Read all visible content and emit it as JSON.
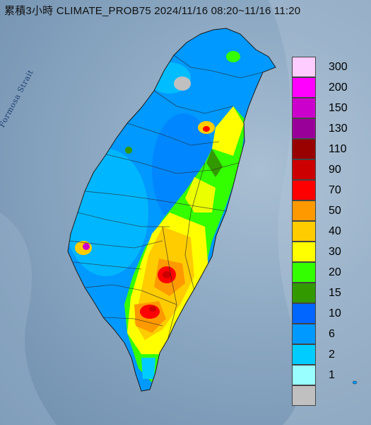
{
  "title": "累積3小時 CLIMATE_PROB75 2024/11/16 08:20~11/16 11:20",
  "water_label": "Formosa Strait",
  "legend": [
    {
      "label": "300",
      "color": "#ffccff"
    },
    {
      "label": "200",
      "color": "#ff00ff"
    },
    {
      "label": "150",
      "color": "#cc00cc"
    },
    {
      "label": "130",
      "color": "#990099"
    },
    {
      "label": "110",
      "color": "#990000"
    },
    {
      "label": "90",
      "color": "#cc0000"
    },
    {
      "label": "70",
      "color": "#ff0000"
    },
    {
      "label": "50",
      "color": "#ff9900"
    },
    {
      "label": "40",
      "color": "#ffcc00"
    },
    {
      "label": "30",
      "color": "#ffff00"
    },
    {
      "label": "20",
      "color": "#33ff00"
    },
    {
      "label": "15",
      "color": "#339900"
    },
    {
      "label": "10",
      "color": "#0066ff"
    },
    {
      "label": "6",
      "color": "#0099ff"
    },
    {
      "label": "2",
      "color": "#00ccff"
    },
    {
      "label": "1",
      "color": "#99ffff"
    },
    {
      "label": "",
      "color": "#c0c0c0"
    }
  ]
}
